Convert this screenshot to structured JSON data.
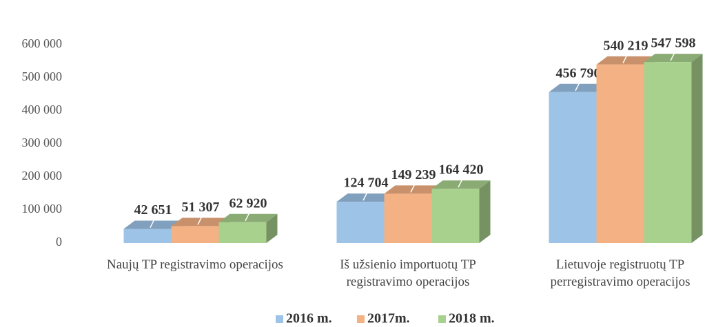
{
  "chart_data": {
    "type": "bar3d",
    "categories": [
      "Naujų TP registravimo operacijos",
      "Iš užsienio importuotų TP registravimo operacijos",
      "Lietuvoje registruotų TP perregistravimo operacijos"
    ],
    "series": [
      {
        "name": "2016 m.",
        "color": "#9dc3e6",
        "values": [
          42651,
          124704,
          456790
        ],
        "value_labels": [
          "42 651",
          "124 704",
          "456 790"
        ]
      },
      {
        "name": "2017m.",
        "color": "#f4b183",
        "values": [
          51307,
          149239,
          540219
        ],
        "value_labels": [
          "51 307",
          "149 239",
          "540 219"
        ]
      },
      {
        "name": "2018 m.",
        "color": "#a9d18e",
        "values": [
          62920,
          164420,
          547598
        ],
        "value_labels": [
          "62 920",
          "164 420",
          "547 598"
        ]
      }
    ],
    "ylim": [
      0,
      600000
    ],
    "yticks": [
      0,
      {
        "value": 100000,
        "label": "100 000"
      },
      {
        "value": 200000,
        "label": "200 000"
      },
      {
        "value": 300000,
        "label": "300 000"
      },
      {
        "value": 400000,
        "label": "400 000"
      },
      {
        "value": 500000,
        "label": "500 000"
      },
      {
        "value": 600000,
        "label": "600 000"
      }
    ],
    "grid": false,
    "legend": "bottom"
  }
}
